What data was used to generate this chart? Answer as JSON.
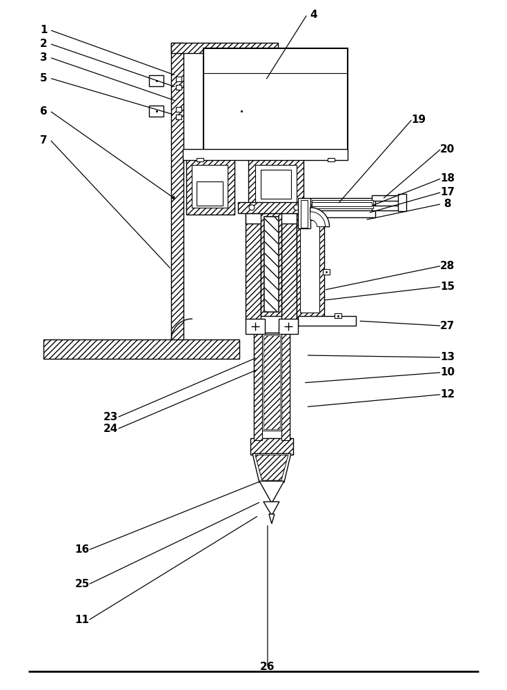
{
  "fig_w": 7.35,
  "fig_h": 10.0,
  "dpi": 100,
  "labels": [
    [
      "1",
      62,
      42,
      255,
      108
    ],
    [
      "2",
      62,
      62,
      255,
      125
    ],
    [
      "3",
      62,
      82,
      255,
      145
    ],
    [
      "4",
      455,
      20,
      385,
      115
    ],
    [
      "5",
      62,
      112,
      252,
      165
    ],
    [
      "6",
      62,
      160,
      250,
      285
    ],
    [
      "7",
      62,
      202,
      248,
      390
    ],
    [
      "8",
      650,
      295,
      530,
      318
    ],
    [
      "10",
      650,
      540,
      440,
      555
    ],
    [
      "11",
      118,
      900,
      375,
      748
    ],
    [
      "12",
      650,
      572,
      444,
      590
    ],
    [
      "13",
      650,
      518,
      444,
      515
    ],
    [
      "15",
      650,
      415,
      468,
      435
    ],
    [
      "16",
      118,
      798,
      378,
      698
    ],
    [
      "17",
      650,
      278,
      534,
      308
    ],
    [
      "18",
      650,
      258,
      538,
      298
    ],
    [
      "19",
      608,
      172,
      490,
      295
    ],
    [
      "20",
      650,
      215,
      555,
      288
    ],
    [
      "23",
      160,
      605,
      373,
      518
    ],
    [
      "24",
      160,
      622,
      375,
      535
    ],
    [
      "25",
      118,
      848,
      378,
      728
    ],
    [
      "26",
      388,
      968,
      388,
      760
    ],
    [
      "27",
      650,
      472,
      520,
      465
    ],
    [
      "28",
      650,
      385,
      470,
      420
    ]
  ]
}
